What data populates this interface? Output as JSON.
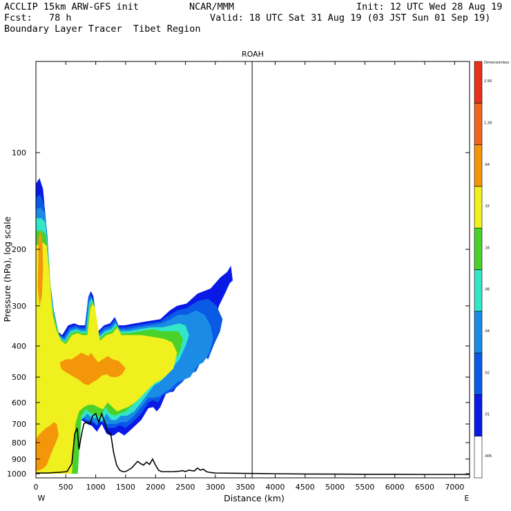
{
  "header": {
    "left_line1": "ACCLIP 15km ARW-GFS init",
    "left_line2": "Fcst:   78 h",
    "left_line3": "Boundary Layer Tracer  Tibet Region",
    "center_line1": "NCAR/MMM",
    "right_line1": "Init: 12 UTC Wed 28 Aug 19",
    "right_line2": "Valid: 18 UTC Sat 31 Aug 19 (03 JST Sun 01 Sep 19)"
  },
  "chart_data": {
    "type": "contour-cross-section",
    "title": "ROAH",
    "xlabel": "Distance (km)",
    "ylabel": "Pressure (hPa), log scale",
    "x_ticks": [
      "0",
      "500",
      "1000",
      "1500",
      "2000",
      "2500",
      "3000",
      "3500",
      "4000",
      "4500",
      "5000",
      "5500",
      "6000",
      "6500",
      "7000"
    ],
    "y_ticks": [
      "100",
      "200",
      "300",
      "400",
      "500",
      "600",
      "700",
      "800",
      "900",
      "1000"
    ],
    "xlim": [
      0,
      7250
    ],
    "ylim": [
      1030,
      52
    ],
    "x_end_labels": {
      "left": "W",
      "right": "E"
    },
    "marker_line_x_km": 3615,
    "colorbar": {
      "top_label": "Dimensionless",
      "levels": [
        ".005",
        ".01",
        ".02",
        ".04",
        ".08",
        ".16",
        ".32",
        ".64",
        "1.28",
        "2.56"
      ],
      "colors": [
        "#ffffff",
        "#0a19e6",
        "#0a5ae6",
        "#1a8ce6",
        "#32e6c8",
        "#4ad22a",
        "#f0f01e",
        "#f4960a",
        "#f0661e",
        "#e6321a"
      ]
    },
    "terrain_profile": {
      "x_km": [
        0,
        200,
        380,
        520,
        600,
        650,
        690,
        720,
        760,
        800,
        850,
        900,
        950,
        1000,
        1050,
        1100,
        1150,
        1200,
        1250,
        1300,
        1350,
        1400,
        1450,
        1500,
        1600,
        1700,
        1750,
        1800,
        1850,
        1900,
        1950,
        2000,
        2050,
        2100,
        2300,
        2400,
        2450,
        2500,
        2550,
        2650,
        2700,
        2750,
        2800,
        2850,
        2900,
        2950,
        3000,
        3500,
        4000,
        4500,
        5000,
        5500,
        6000,
        6500,
        7000,
        7250
      ],
      "p_hpa": [
        995,
        995,
        990,
        985,
        930,
        750,
        720,
        840,
        760,
        700,
        690,
        700,
        660,
        650,
        690,
        650,
        690,
        740,
        750,
        860,
        940,
        975,
        985,
        985,
        960,
        915,
        930,
        940,
        920,
        935,
        900,
        940,
        975,
        985,
        985,
        982,
        978,
        985,
        975,
        980,
        960,
        975,
        968,
        985,
        990,
        993,
        995,
        998,
        1000,
        1002,
        1003,
        1004,
        1004,
        1005,
        1005,
        1005
      ]
    },
    "tracer_regions": [
      {
        "level": ".01",
        "x_km": [
          0,
          60,
          120,
          170,
          220,
          280,
          360,
          440,
          540,
          640,
          720,
          820,
          880,
          920,
          960,
          1040,
          1140,
          1240,
          1320,
          1380,
          1480,
          1660,
          1860,
          2080,
          2240,
          2360,
          2520,
          2700,
          2920,
          3080,
          3200,
          3260,
          3290,
          3240,
          3160,
          3060,
          2960,
          2860,
          2780,
          2640,
          2520,
          2400,
          2300,
          2180,
          2080,
          2020,
          1960,
          1880,
          1760,
          1620,
          1480,
          1380,
          1300,
          1240,
          1180,
          1100,
          1020,
          940,
          860,
          760,
          700,
          640,
          560,
          460,
          340,
          220,
          120,
          0
        ],
        "p_hpa": [
          125,
          120,
          130,
          165,
          240,
          300,
          360,
          370,
          345,
          340,
          345,
          345,
          280,
          270,
          280,
          360,
          345,
          340,
          325,
          345,
          345,
          340,
          335,
          330,
          310,
          300,
          295,
          275,
          265,
          245,
          235,
          225,
          250,
          255,
          275,
          300,
          350,
          420,
          410,
          470,
          480,
          520,
          555,
          560,
          620,
          640,
          620,
          625,
          680,
          720,
          760,
          740,
          760,
          760,
          750,
          700,
          740,
          710,
          700,
          680,
          720,
          1000,
          1000,
          1000,
          1000,
          1000,
          1000,
          1000
        ]
      },
      {
        "level": ".02",
        "x_km": [
          0,
          70,
          140,
          190,
          240,
          300,
          380,
          460,
          560,
          660,
          740,
          820,
          870,
          910,
          950,
          1030,
          1140,
          1240,
          1320,
          1390,
          1500,
          1680,
          1880,
          2080,
          2240,
          2360,
          2520,
          2700,
          2880,
          3020,
          3120,
          3080,
          2980,
          2880,
          2800,
          2680,
          2560,
          2440,
          2340,
          2220,
          2120,
          2040,
          1960,
          1880,
          1760,
          1620,
          1500,
          1400,
          1320,
          1260,
          1180,
          1100,
          1020,
          940,
          860,
          760,
          700,
          640,
          560,
          460,
          340,
          220,
          120,
          0
        ],
        "p_hpa": [
          138,
          135,
          145,
          180,
          255,
          310,
          365,
          375,
          350,
          345,
          350,
          350,
          285,
          275,
          285,
          365,
          350,
          345,
          330,
          350,
          350,
          345,
          340,
          335,
          320,
          310,
          305,
          290,
          285,
          300,
          330,
          360,
          395,
          440,
          430,
          480,
          490,
          520,
          540,
          560,
          570,
          600,
          590,
          600,
          650,
          690,
          720,
          705,
          720,
          720,
          720,
          680,
          710,
          690,
          690,
          670,
          700,
          1000,
          1000,
          1000,
          1000,
          1000,
          1000,
          1000
        ]
      },
      {
        "level": ".04",
        "x_km": [
          0,
          80,
          150,
          200,
          250,
          310,
          390,
          470,
          570,
          670,
          750,
          830,
          880,
          920,
          960,
          1040,
          1150,
          1250,
          1330,
          1400,
          1520,
          1700,
          1900,
          2100,
          2250,
          2380,
          2520,
          2680,
          2820,
          2920,
          2960,
          2900,
          2800,
          2700,
          2580,
          2460,
          2360,
          2240,
          2140,
          2060,
          1960,
          1880,
          1760,
          1640,
          1520,
          1420,
          1340,
          1260,
          1180,
          1100,
          1020,
          940,
          860,
          760,
          700,
          640,
          560,
          460,
          340,
          220,
          120,
          0
        ],
        "p_hpa": [
          150,
          148,
          155,
          195,
          270,
          320,
          370,
          380,
          355,
          350,
          355,
          355,
          290,
          280,
          290,
          370,
          355,
          350,
          335,
          355,
          355,
          350,
          345,
          340,
          330,
          320,
          320,
          310,
          320,
          345,
          380,
          420,
          450,
          460,
          500,
          510,
          520,
          545,
          560,
          575,
          580,
          580,
          620,
          660,
          690,
          690,
          700,
          700,
          700,
          670,
          700,
          680,
          680,
          660,
          690,
          1000,
          1000,
          1000,
          1000,
          1000,
          1000,
          1000
        ]
      },
      {
        "level": ".08",
        "x_km": [
          0,
          90,
          160,
          210,
          260,
          320,
          400,
          480,
          580,
          680,
          760,
          840,
          890,
          930,
          970,
          1050,
          1160,
          1260,
          1340,
          1410,
          1540,
          1720,
          1920,
          2120,
          2260,
          2400,
          2500,
          2560,
          2500,
          2400,
          2280,
          2160,
          2060,
          1980,
          1880,
          1760,
          1640,
          1520,
          1420,
          1340,
          1260,
          1180,
          1100,
          1020,
          940,
          860,
          760,
          700,
          640,
          560,
          460,
          340,
          220,
          120,
          0
        ],
        "p_hpa": [
          160,
          160,
          165,
          210,
          285,
          330,
          375,
          385,
          360,
          355,
          360,
          360,
          295,
          285,
          295,
          375,
          360,
          355,
          340,
          360,
          360,
          355,
          350,
          350,
          345,
          340,
          345,
          370,
          400,
          440,
          470,
          500,
          520,
          530,
          560,
          600,
          640,
          660,
          660,
          680,
          680,
          650,
          690,
          670,
          670,
          650,
          680,
          1000,
          1000,
          1000,
          1000,
          1000,
          1000,
          1000,
          1000
        ]
      },
      {
        "level": ".16",
        "x_km": [
          0,
          100,
          170,
          220,
          270,
          330,
          410,
          490,
          590,
          690,
          770,
          850,
          900,
          940,
          980,
          1060,
          1170,
          1270,
          1350,
          1420,
          1560,
          1740,
          1940,
          2120,
          2260,
          2380,
          2460,
          2400,
          2280,
          2160,
          2060,
          1960,
          1860,
          1740,
          1620,
          1500,
          1400,
          1320,
          1240,
          1160,
          1080,
          1000,
          920,
          840,
          760,
          700,
          640,
          560,
          460,
          340,
          220,
          120,
          0
        ],
        "p_hpa": [
          175,
          175,
          180,
          225,
          300,
          340,
          380,
          390,
          365,
          360,
          365,
          365,
          300,
          290,
          300,
          380,
          365,
          360,
          345,
          365,
          365,
          360,
          355,
          360,
          360,
          360,
          380,
          420,
          450,
          480,
          500,
          510,
          540,
          580,
          610,
          640,
          650,
          660,
          650,
          620,
          670,
          650,
          650,
          630,
          660,
          1000,
          1000,
          1000,
          1000,
          1000,
          1000,
          1000,
          1000
        ]
      },
      {
        "level": ".32",
        "x_km": [
          0,
          110,
          180,
          230,
          280,
          340,
          420,
          500,
          600,
          700,
          780,
          860,
          910,
          950,
          990,
          1070,
          1180,
          1280,
          1360,
          1430,
          1580,
          1760,
          1960,
          2140,
          2280,
          2360,
          2300,
          2200,
          2100,
          2000,
          1900,
          1780,
          1660,
          1540,
          1440,
          1360,
          1280,
          1200,
          1120,
          1040,
          960,
          880,
          800,
          720,
          660,
          600,
          520,
          420,
          300,
          180,
          80,
          0
        ],
        "p_hpa": [
          195,
          190,
          195,
          245,
          320,
          355,
          385,
          395,
          370,
          365,
          370,
          370,
          305,
          295,
          305,
          385,
          370,
          365,
          350,
          370,
          370,
          370,
          375,
          380,
          390,
          420,
          470,
          490,
          510,
          520,
          540,
          570,
          600,
          620,
          630,
          640,
          620,
          600,
          630,
          620,
          610,
          610,
          620,
          640,
          700,
          1000,
          1000,
          1000,
          1000,
          1000,
          1000,
          1000
        ]
      },
      {
        "level": ".64",
        "x_km": [
          0,
          40,
          100,
          170,
          230,
          300,
          350,
          380,
          320,
          260,
          220,
          180,
          120,
          60,
          0
        ],
        "p_hpa": [
          780,
          760,
          740,
          720,
          710,
          690,
          700,
          760,
          810,
          860,
          900,
          940,
          965,
          975,
          980
        ]
      },
      {
        "level": ".64",
        "x_km": [
          400,
          500,
          600,
          680,
          760,
          820,
          880,
          920,
          960,
          1040,
          1120,
          1200,
          1280,
          1380,
          1460,
          1500,
          1440,
          1360,
          1260,
          1180,
          1100,
          1020,
          940,
          880,
          800,
          720,
          640,
          560,
          480,
          420
        ],
        "p_hpa": [
          450,
          440,
          440,
          430,
          420,
          425,
          430,
          420,
          430,
          450,
          440,
          430,
          440,
          445,
          460,
          470,
          490,
          500,
          500,
          490,
          495,
          510,
          520,
          530,
          525,
          510,
          500,
          490,
          480,
          470
        ]
      },
      {
        "level": ".64",
        "x_km": [
          40,
          80,
          110,
          120,
          100,
          60,
          30,
          40
        ],
        "p_hpa": [
          185,
          175,
          190,
          230,
          280,
          300,
          260,
          220
        ]
      }
    ]
  }
}
